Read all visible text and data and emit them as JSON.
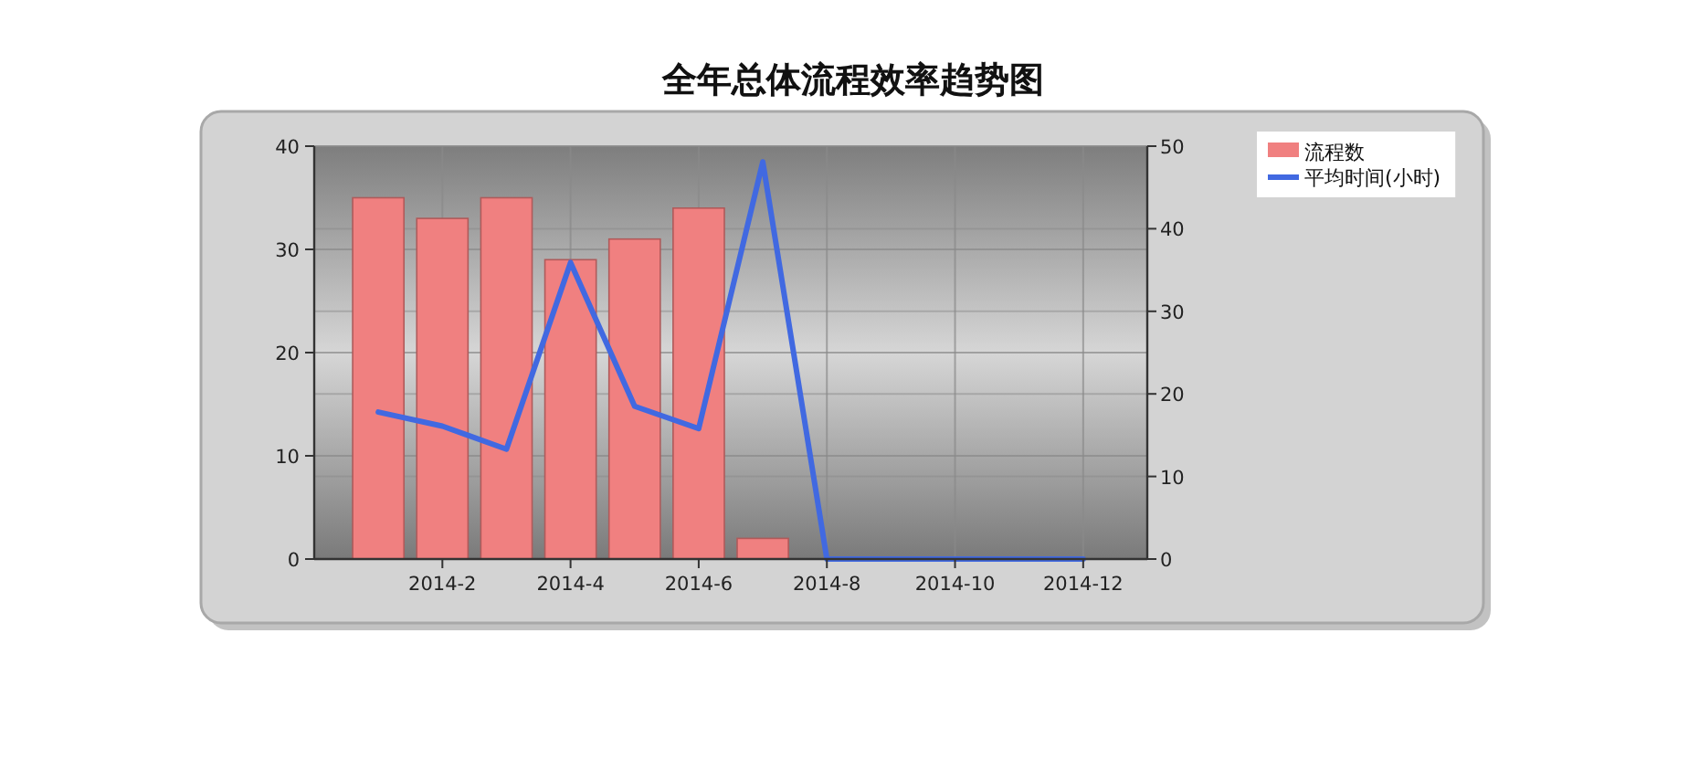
{
  "chart_data": {
    "type": "bar",
    "title": "全年总体流程效率趋势图",
    "xlim": [
      "2013-12",
      "2015-01"
    ],
    "xticks": [
      {
        "value": "2014-02",
        "label": "2014-2"
      },
      {
        "value": "2014-04",
        "label": "2014-4"
      },
      {
        "value": "2014-06",
        "label": "2014-6"
      },
      {
        "value": "2014-08",
        "label": "2014-8"
      },
      {
        "value": "2014-10",
        "label": "2014-10"
      },
      {
        "value": "2014-12",
        "label": "2014-12"
      }
    ],
    "ylim": [
      0,
      40
    ],
    "yticks": [
      0,
      10,
      20,
      30,
      40
    ],
    "y2lim": [
      0,
      50
    ],
    "y2ticks": [
      0,
      10,
      20,
      30,
      40,
      50
    ],
    "grid": true,
    "legend": "top right",
    "series": [
      {
        "name": "流程数",
        "color": "#f08080",
        "x": [
          "2014-01",
          "2014-02",
          "2014-03",
          "2014-04",
          "2014-05",
          "2014-06",
          "2014-07"
        ],
        "values": [
          35,
          33,
          35,
          29,
          31,
          34,
          2
        ]
      },
      {
        "name": "平均时间(小时)",
        "type": "line",
        "axis": "y2",
        "color": "#4169e1",
        "x": [
          "2014-01",
          "2014-02",
          "2014-03",
          "2014-04",
          "2014-05",
          "2014-06",
          "2014-07",
          "2014-08",
          "2014-09",
          "2014-10",
          "2014-11",
          "2014-12"
        ],
        "values": [
          17.8,
          16.1,
          13.3,
          35.9,
          18.5,
          15.8,
          48.1,
          0,
          0,
          0,
          0,
          0
        ]
      }
    ]
  }
}
